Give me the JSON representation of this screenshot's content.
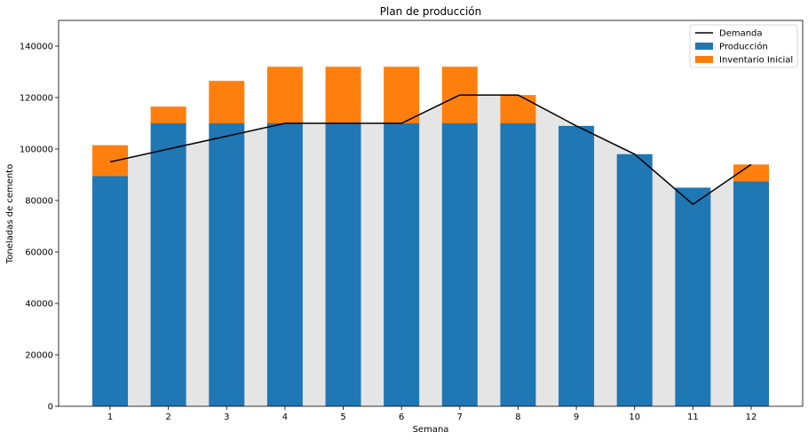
{
  "chart_data": {
    "type": "bar",
    "title": "Plan de producción",
    "xlabel": "Semana",
    "ylabel": "Toneladas de cemento",
    "ylim": [
      0,
      150000
    ],
    "yticks": [
      0,
      20000,
      40000,
      60000,
      80000,
      100000,
      120000,
      140000
    ],
    "categories": [
      "1",
      "2",
      "3",
      "4",
      "5",
      "6",
      "7",
      "8",
      "9",
      "10",
      "11",
      "12"
    ],
    "series": [
      {
        "name": "Producción",
        "type": "bar",
        "stack": "main",
        "color": "#1f77b4",
        "values": [
          89500,
          110000,
          110000,
          110000,
          110000,
          110000,
          110000,
          110000,
          109000,
          98000,
          85000,
          87500
        ]
      },
      {
        "name": "Inventario Inicial",
        "type": "bar",
        "stack": "main",
        "color": "#ff7f0e",
        "values": [
          12000,
          6500,
          16500,
          22000,
          22000,
          22000,
          22000,
          11000,
          0,
          0,
          0,
          6500
        ]
      },
      {
        "name": "Demanda",
        "type": "line",
        "color": "#000000",
        "values": [
          95000,
          100000,
          105000,
          110000,
          110000,
          110000,
          121000,
          121000,
          109000,
          98000,
          78500,
          94000
        ]
      }
    ],
    "background_fill": {
      "color": "#e5e5e5",
      "follows": "Demanda"
    },
    "legend_position": "top-right",
    "grid": false
  }
}
